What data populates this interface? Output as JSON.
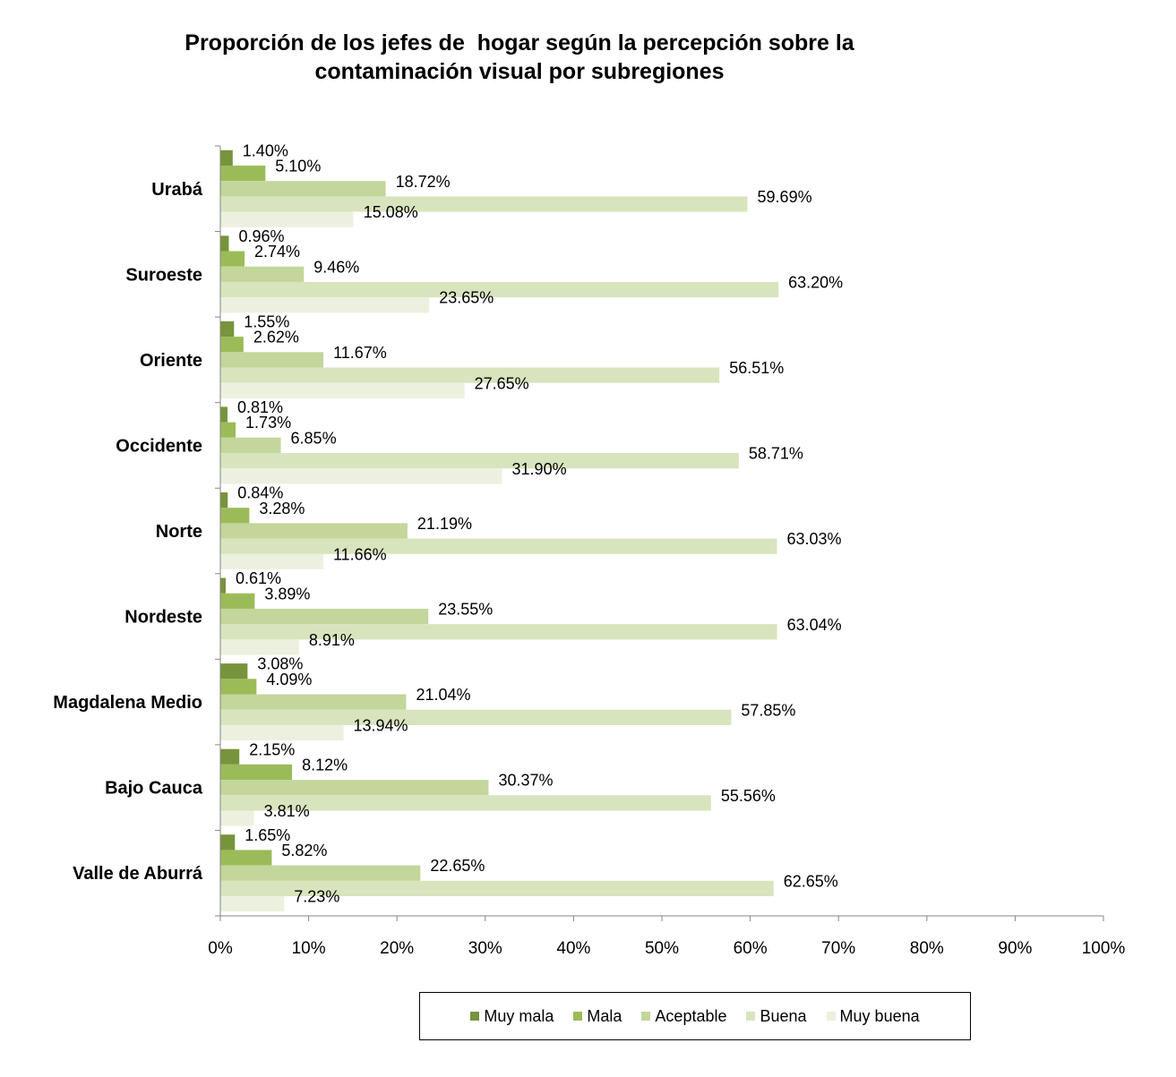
{
  "chart_data": {
    "type": "bar",
    "orientation": "horizontal",
    "title": "Proporción de los jefes de  hogar según la percepción sobre la\ncontaminación visual por subregiones",
    "xlabel": "",
    "ylabel": "",
    "xlim": [
      0,
      100
    ],
    "x_ticks": [
      "0%",
      "10%",
      "20%",
      "30%",
      "40%",
      "50%",
      "60%",
      "70%",
      "80%",
      "90%",
      "100%"
    ],
    "grid": false,
    "legend_position": "bottom",
    "categories": [
      "Urabá",
      "Suroeste",
      "Oriente",
      "Occidente",
      "Norte",
      "Nordeste",
      "Magdalena Medio",
      "Bajo Cauca",
      "Valle de Aburrá"
    ],
    "series": [
      {
        "name": "Muy mala",
        "color": "#77933C",
        "values": [
          1.4,
          0.96,
          1.55,
          0.81,
          0.84,
          0.61,
          3.08,
          2.15,
          1.65
        ],
        "labels": [
          "1.40%",
          "0.96%",
          "1.55%",
          "0.81%",
          "0.84%",
          "0.61%",
          "3.08%",
          "2.15%",
          "1.65%"
        ]
      },
      {
        "name": "Mala",
        "color": "#9BBB59",
        "values": [
          5.1,
          2.74,
          2.62,
          1.73,
          3.28,
          3.89,
          4.09,
          8.12,
          5.82
        ],
        "labels": [
          "5.10%",
          "2.74%",
          "2.62%",
          "1.73%",
          "3.28%",
          "3.89%",
          "4.09%",
          "8.12%",
          "5.82%"
        ]
      },
      {
        "name": "Aceptable",
        "color": "#C3D69B",
        "values": [
          18.72,
          9.46,
          11.67,
          6.85,
          21.19,
          23.55,
          21.04,
          30.37,
          22.65
        ],
        "labels": [
          "18.72%",
          "9.46%",
          "11.67%",
          "6.85%",
          "21.19%",
          "23.55%",
          "21.04%",
          "30.37%",
          "22.65%"
        ]
      },
      {
        "name": "Buena",
        "color": "#D7E4BD",
        "values": [
          59.69,
          63.2,
          56.51,
          58.71,
          63.03,
          63.04,
          57.85,
          55.56,
          62.65
        ],
        "labels": [
          "59.69%",
          "63.20%",
          "56.51%",
          "58.71%",
          "63.03%",
          "63.04%",
          "57.85%",
          "55.56%",
          "62.65%"
        ]
      },
      {
        "name": "Muy buena",
        "color": "#EBF1DE",
        "values": [
          15.08,
          23.65,
          27.65,
          31.9,
          11.66,
          8.91,
          13.94,
          3.81,
          7.23
        ],
        "labels": [
          "15.08%",
          "23.65%",
          "27.65%",
          "31.90%",
          "11.66%",
          "8.91%",
          "13.94%",
          "3.81%",
          "7.23%"
        ]
      }
    ]
  }
}
